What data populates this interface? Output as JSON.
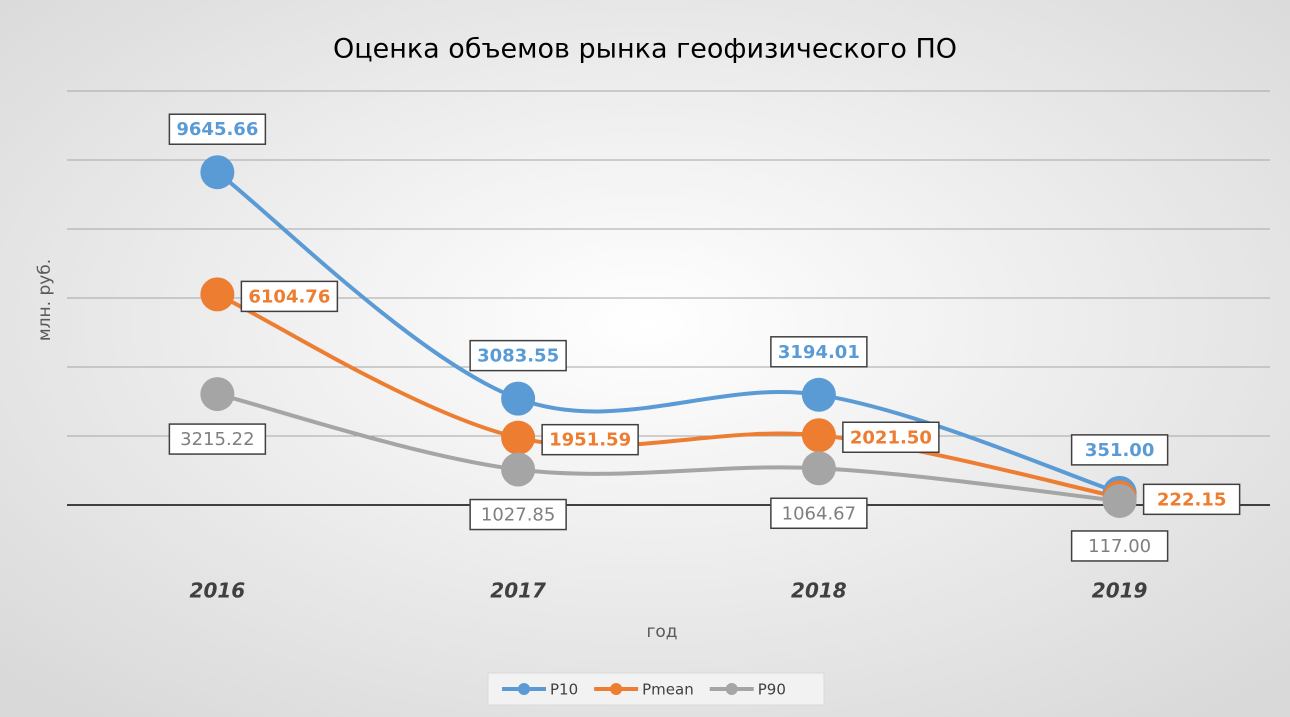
{
  "chart_data": {
    "type": "line",
    "title": "Оценка объемов рынка геофизического ПО",
    "x_label": "год",
    "y_label": "млн. руб.",
    "categories": [
      "2016",
      "2017",
      "2018",
      "2019"
    ],
    "series": [
      {
        "name": "P10",
        "color": "#5b9bd5",
        "values": [
          9645.66,
          3083.55,
          3194.01,
          351
        ],
        "value_labels": [
          "9645.66",
          "3083.55",
          "3194.01",
          "351.00"
        ]
      },
      {
        "name": "Pmean",
        "color": "#ed7d31",
        "values": [
          6104.76,
          1951.59,
          2021.5,
          222.15
        ],
        "value_labels": [
          "6104.76",
          "1951.59",
          "2021.50",
          "222.15"
        ]
      },
      {
        "name": "P90",
        "color": "#a5a5a5",
        "values": [
          3215.22,
          1027.85,
          1064.67,
          117
        ],
        "value_labels": [
          "3215.22",
          "1027.85",
          "1064.67",
          "117.00"
        ]
      }
    ],
    "ylim": [
      0,
      12000
    ],
    "yticks": [
      0,
      2000,
      4000,
      6000,
      8000,
      10000,
      12000
    ],
    "grid": true,
    "legend": "bottom",
    "smooth": true
  }
}
